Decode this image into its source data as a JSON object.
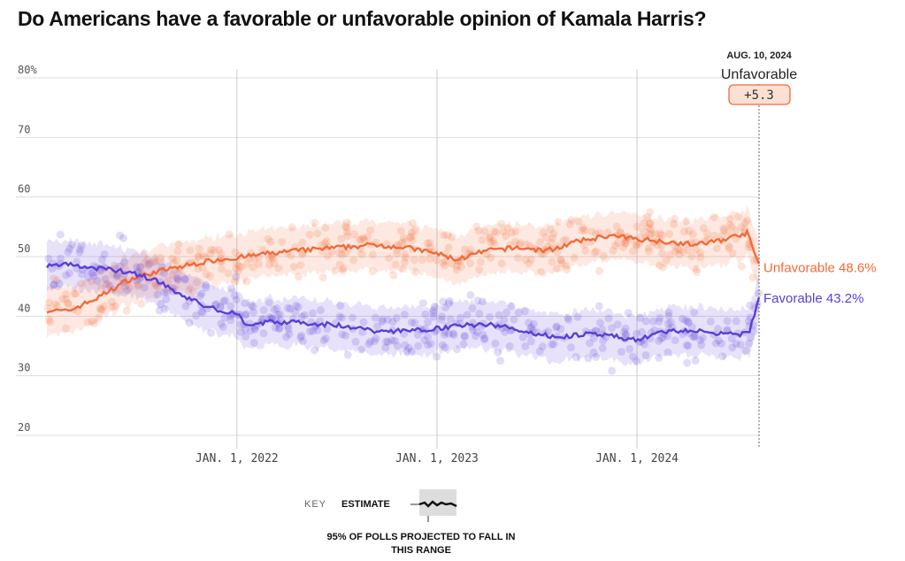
{
  "chart_data": {
    "type": "line",
    "title": "Do Americans have a favorable or unfavorable opinion of Kamala Harris?",
    "ylim": [
      20,
      80
    ],
    "yticks": [
      20,
      30,
      40,
      50,
      60,
      70,
      80
    ],
    "ytick_labels": [
      "20",
      "30",
      "40",
      "50",
      "60",
      "70",
      "80%"
    ],
    "xlim": [
      2021.05,
      2024.61
    ],
    "xticks": [
      2022,
      2023,
      2024
    ],
    "xtick_labels": [
      "JAN. 1, 2022",
      "JAN. 1, 2023",
      "JAN. 1, 2024"
    ],
    "grid": true,
    "series": [
      {
        "name": "Unfavorable",
        "color": "#f26b38",
        "band_halfwidth": 4,
        "x": [
          2021.05,
          2021.15,
          2021.3,
          2021.45,
          2021.6,
          2021.75,
          2021.9,
          2022.0,
          2022.15,
          2022.3,
          2022.5,
          2022.7,
          2022.85,
          2023.0,
          2023.1,
          2023.25,
          2023.4,
          2023.55,
          2023.7,
          2023.85,
          2024.0,
          2024.15,
          2024.3,
          2024.45,
          2024.55,
          2024.61
        ],
        "y": [
          41,
          40.8,
          43,
          46,
          47.5,
          48.5,
          49.5,
          49.8,
          50.5,
          51,
          51.5,
          52,
          51.5,
          50.5,
          49.5,
          51,
          51.5,
          51,
          52.5,
          53.5,
          53,
          52.5,
          52,
          53,
          54,
          48.6
        ]
      },
      {
        "name": "Favorable",
        "color": "#5b3fd6",
        "band_halfwidth": 4,
        "x": [
          2021.05,
          2021.15,
          2021.3,
          2021.45,
          2021.6,
          2021.75,
          2021.9,
          2022.0,
          2022.05,
          2022.15,
          2022.3,
          2022.5,
          2022.7,
          2022.85,
          2023.0,
          2023.15,
          2023.3,
          2023.5,
          2023.6,
          2023.75,
          2023.9,
          2024.0,
          2024.15,
          2024.3,
          2024.45,
          2024.56,
          2024.61
        ],
        "y": [
          48.5,
          48.7,
          48,
          47.5,
          46,
          43,
          41,
          40.5,
          38.5,
          39,
          39,
          38.5,
          37.5,
          37.5,
          38,
          38.5,
          38.5,
          37,
          36.5,
          37,
          36.5,
          36,
          37.5,
          37.5,
          37,
          37,
          43.2
        ]
      }
    ],
    "end_labels": [
      {
        "text": "Unfavorable 48.6%",
        "color": "#f26b38"
      },
      {
        "text": "Favorable 43.2%",
        "color": "#5b3fd6"
      }
    ],
    "annotation": {
      "date": "AUG. 10, 2024",
      "leader": "Unfavorable",
      "margin": "+5.3"
    }
  },
  "key": {
    "label": "KEY",
    "estimate": "ESTIMATE",
    "range": "95% OF POLLS PROJECTED TO FALL IN THIS RANGE"
  }
}
